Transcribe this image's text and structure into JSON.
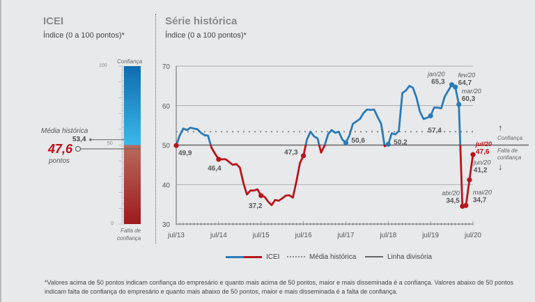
{
  "gauge": {
    "title": "ICEI",
    "subtitle": "Índice (0 a 100 pontos)*",
    "top_label": "Confiança",
    "bottom_label": "Falta de confiança",
    "ticks": [
      "100",
      "50",
      "0"
    ],
    "value": 47.6,
    "value_label": "47,6",
    "value_unit": "pontos",
    "avg_label": "Média histórica",
    "avg_value": 53.4,
    "avg_value_label": "53,4"
  },
  "chart_data": {
    "type": "line",
    "title": "Série histórica",
    "subtitle": "Índice (0 a 100 pontos)*",
    "ylim": [
      30,
      70
    ],
    "yticks": [
      "30",
      "40",
      "50",
      "60",
      "70"
    ],
    "xticks": [
      "jul/13",
      "jul/14",
      "jul/15",
      "jul/16",
      "jul/17",
      "jul/18",
      "jul/19",
      "jul/20"
    ],
    "x_start": "jul/13",
    "x_end": "jul/20",
    "frequency": "monthly",
    "series": [
      {
        "name": "ICEI",
        "color_above": "#2a7ab8",
        "color_below": "#b5151c",
        "values": [
          49.9,
          52.5,
          54.2,
          53.8,
          54.4,
          54.2,
          54.0,
          53.1,
          52.5,
          52.4,
          49.3,
          47.8,
          46.4,
          46.4,
          46.4,
          45.7,
          45.0,
          45.2,
          44.3,
          40.4,
          37.5,
          38.5,
          38.5,
          38.8,
          37.2,
          36.9,
          35.7,
          34.8,
          36.1,
          35.9,
          36.5,
          37.2,
          37.3,
          36.7,
          40.7,
          45.4,
          47.3,
          51.4,
          53.4,
          52.2,
          51.7,
          48.1,
          49.9,
          52.8,
          53.8,
          53.1,
          53.4,
          51.4,
          50.6,
          52.4,
          55.4,
          56.0,
          56.6,
          58.1,
          59.0,
          58.9,
          59.0,
          57.1,
          55.4,
          49.7,
          50.2,
          53.0,
          52.7,
          53.6,
          63.2,
          63.8,
          65.0,
          64.5,
          62.0,
          58.4,
          56.6,
          56.9,
          57.4,
          59.5,
          59.5,
          59.3,
          62.3,
          63.8,
          65.3,
          64.7,
          60.3,
          34.5,
          34.7,
          41.2,
          47.6
        ]
      }
    ],
    "reference_lines": [
      {
        "name": "Média histórica",
        "value": 53.4,
        "style": "dotted"
      },
      {
        "name": "Linha divisória",
        "value": 50,
        "style": "solid"
      }
    ],
    "annotations": [
      {
        "index": 0,
        "value": "49,9"
      },
      {
        "index": 12,
        "value": "46,4"
      },
      {
        "index": 24,
        "value": "37,2"
      },
      {
        "index": 36,
        "value": "47,3"
      },
      {
        "index": 48,
        "value": "50,6"
      },
      {
        "index": 60,
        "value": "50,2"
      },
      {
        "index": 72,
        "value": "57,4"
      },
      {
        "index": 78,
        "date": "jan/20",
        "value": "65,3"
      },
      {
        "index": 79,
        "date": "fev/20",
        "value": "64,7"
      },
      {
        "index": 80,
        "date": "mar/20",
        "value": "60,3"
      },
      {
        "index": 81,
        "date": "abr/20",
        "value": "34,5"
      },
      {
        "index": 82,
        "date": "mai/20",
        "value": "34,7"
      },
      {
        "index": 83,
        "date": "jun/20",
        "value": "41,2"
      },
      {
        "index": 84,
        "date": "jul/20",
        "value": "47,6"
      }
    ],
    "side_labels": {
      "above": "Confiança",
      "below": "Falta de confiança"
    },
    "legend": [
      "ICEI",
      "Média histórica",
      "Linha divisória"
    ],
    "legend_position": "bottom"
  },
  "footnote": "*Valores acima de 50 pontos indicam confiança do empresário e quanto mais acima de 50 pontos, maior e mais disseminada é a confiança. Valores abaixo de 50 pontos indicam falta de confiança do empresário e quanto mais abaixo de 50 pontos, maior e mais disseminada é a falta de confiança."
}
